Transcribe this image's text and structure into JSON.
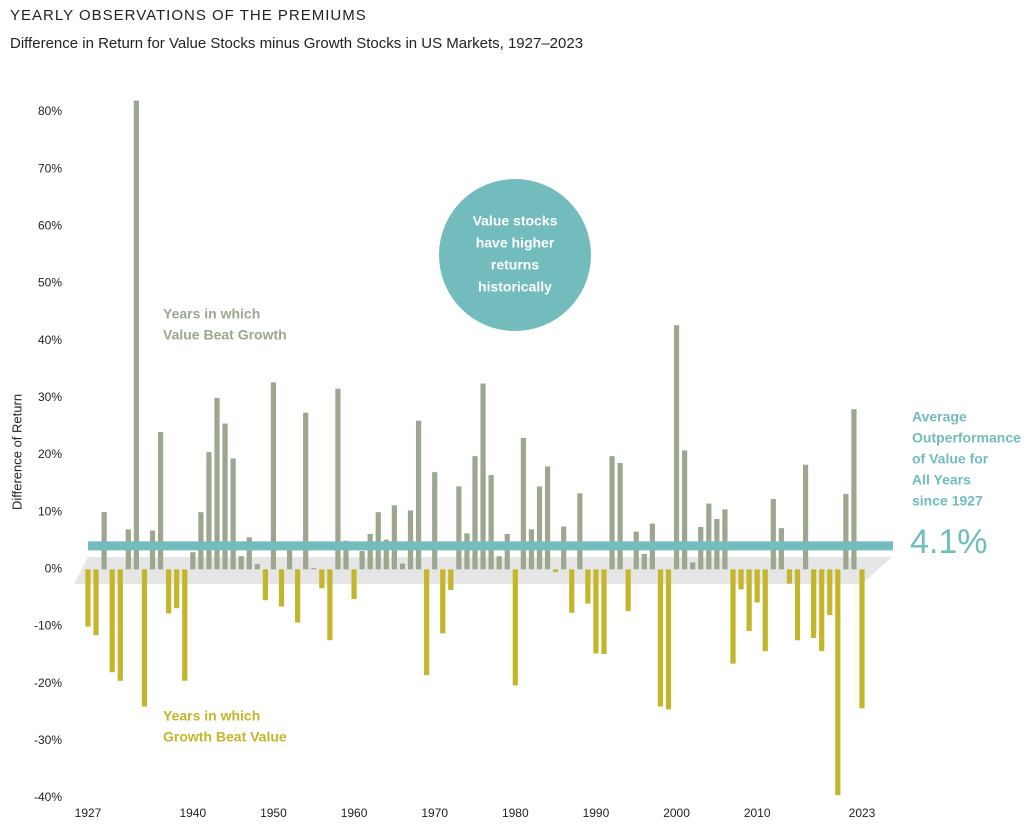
{
  "chart_data": {
    "type": "bar",
    "title": "YEARLY OBSERVATIONS OF THE PREMIUMS",
    "subtitle": "Difference in Return for Value Stocks minus Growth Stocks in US Markets, 1927–2023",
    "y_label": "Difference of Return",
    "categories": [
      "1927",
      null,
      null,
      null,
      null,
      null,
      null,
      null,
      null,
      null,
      null,
      null,
      null,
      "1940",
      null,
      null,
      null,
      null,
      null,
      null,
      null,
      null,
      null,
      "1950",
      null,
      null,
      null,
      null,
      null,
      null,
      null,
      null,
      null,
      "1960",
      null,
      null,
      null,
      null,
      null,
      null,
      null,
      null,
      null,
      "1970",
      null,
      null,
      null,
      null,
      null,
      null,
      null,
      null,
      null,
      "1980",
      null,
      null,
      null,
      null,
      null,
      null,
      null,
      null,
      null,
      "1990",
      null,
      null,
      null,
      null,
      null,
      null,
      null,
      null,
      null,
      "2000",
      null,
      null,
      null,
      null,
      null,
      null,
      null,
      null,
      null,
      "2010",
      null,
      null,
      null,
      null,
      null,
      null,
      null,
      null,
      null,
      null,
      null,
      null,
      "2023"
    ],
    "values": [
      -10,
      -11.5,
      10,
      -18,
      -19.5,
      7,
      82,
      -24,
      6.8,
      24,
      -7.7,
      -6.8,
      -19.5,
      3,
      10,
      20.5,
      30,
      25.5,
      19.4,
      2.3,
      5.6,
      0.9,
      -5.4,
      32.7,
      -6.5,
      3.8,
      -9.3,
      27.4,
      0.2,
      -3.3,
      -12.4,
      31.6,
      5,
      -5.2,
      3.2,
      6.2,
      10,
      5.2,
      11.2,
      1,
      10.3,
      26,
      -18.5,
      17,
      -11.2,
      -3.6,
      14.5,
      6.3,
      19.8,
      32.5,
      16.5,
      2.3,
      6.2,
      -20.3,
      23,
      7,
      14.5,
      18,
      -0.5,
      7.5,
      -7.6,
      13.3,
      -6,
      -14.7,
      -14.8,
      19.8,
      18.6,
      -7.3,
      6.6,
      2.7,
      8,
      -24,
      -24.5,
      42.7,
      20.8,
      1.2,
      7.4,
      11.5,
      8.8,
      10.5,
      -16.5,
      -3.5,
      -10.8,
      -5.8,
      -14.3,
      12.3,
      7.2,
      -2.5,
      -12.4,
      18.3,
      -12,
      -14.3,
      -8,
      -39.5,
      13.2,
      28,
      -24.3
    ],
    "colors": {
      "positive": "#9ba78f",
      "negative": "#c4b62b",
      "average": "#72bcbd"
    },
    "ylim": [
      -40,
      80
    ],
    "yticks": [
      {
        "value": -40,
        "label": "-40%"
      },
      {
        "value": -30,
        "label": "-30%"
      },
      {
        "value": -20,
        "label": "-20%"
      },
      {
        "value": -10,
        "label": "-10%"
      },
      {
        "value": 0,
        "label": "0%"
      },
      {
        "value": 10,
        "label": "10%"
      },
      {
        "value": 20,
        "label": "20%"
      },
      {
        "value": 30,
        "label": "30%"
      },
      {
        "value": 40,
        "label": "40%"
      },
      {
        "value": 50,
        "label": "50%"
      },
      {
        "value": 60,
        "label": "60%"
      },
      {
        "value": 70,
        "label": "70%"
      },
      {
        "value": 80,
        "label": "80%"
      }
    ],
    "average": {
      "value": 4.1,
      "label": "4.1%",
      "text": [
        "Average",
        "Outperformance",
        "of Value for",
        "All Years",
        "since 1927"
      ]
    },
    "annotations": {
      "value_beat": [
        "Years in which",
        "Value Beat Growth"
      ],
      "growth_beat": [
        "Years in which",
        "Growth Beat Value"
      ],
      "circle": [
        "Value stocks",
        "have higher",
        "returns",
        "historically"
      ]
    }
  }
}
